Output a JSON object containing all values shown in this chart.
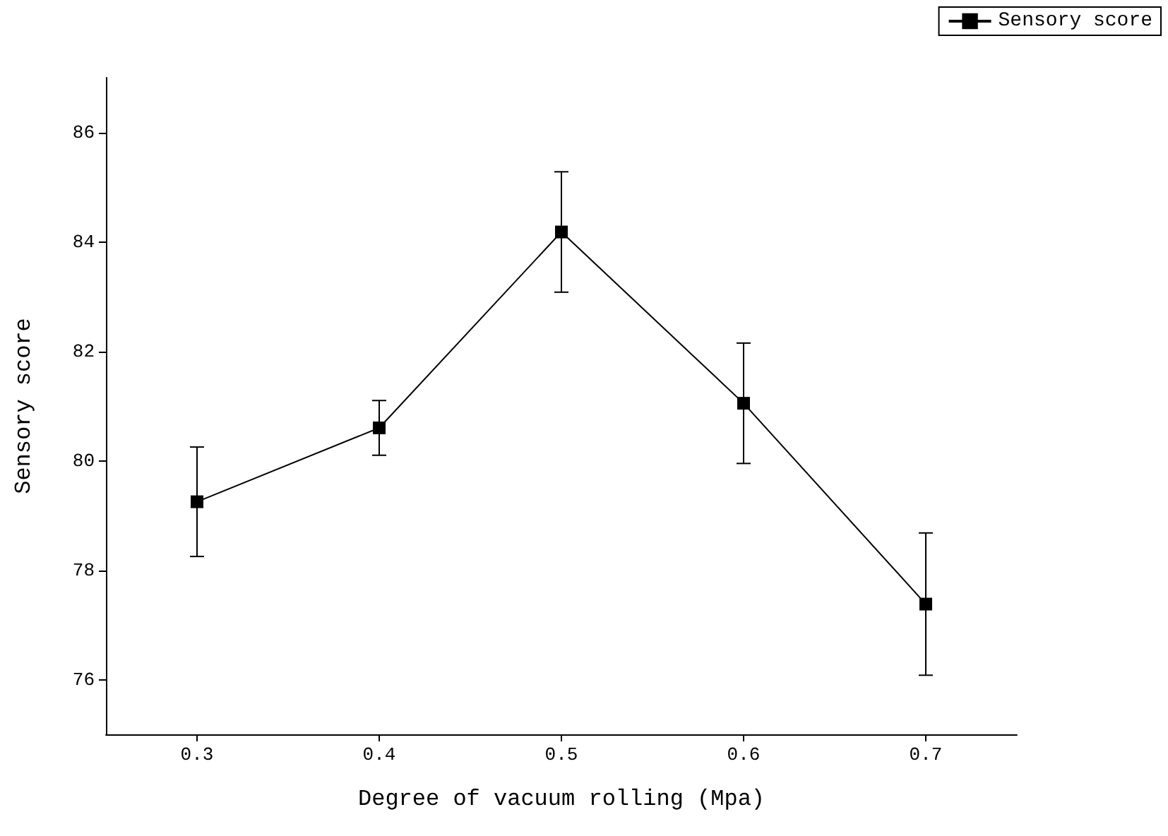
{
  "chart_data": {
    "type": "line",
    "xlabel": "Degree of vacuum rolling (Mpa)",
    "ylabel": "Sensory score",
    "x": [
      0.3,
      0.4,
      0.5,
      0.6,
      0.7
    ],
    "series": [
      {
        "name": "Sensory score",
        "color": "#000000",
        "values": [
          79.25,
          80.6,
          84.18,
          81.05,
          77.38
        ],
        "errors": [
          1.0,
          0.5,
          1.1,
          1.1,
          1.3
        ]
      }
    ],
    "xlim": [
      0.25,
      0.75
    ],
    "xticks": [
      0.3,
      0.4,
      0.5,
      0.6,
      0.7
    ],
    "ylim": [
      75,
      87
    ],
    "yticks": [
      76,
      78,
      80,
      82,
      84,
      86
    ],
    "grid": false,
    "legend": "top right",
    "marker": "square",
    "line_style": "solid"
  }
}
